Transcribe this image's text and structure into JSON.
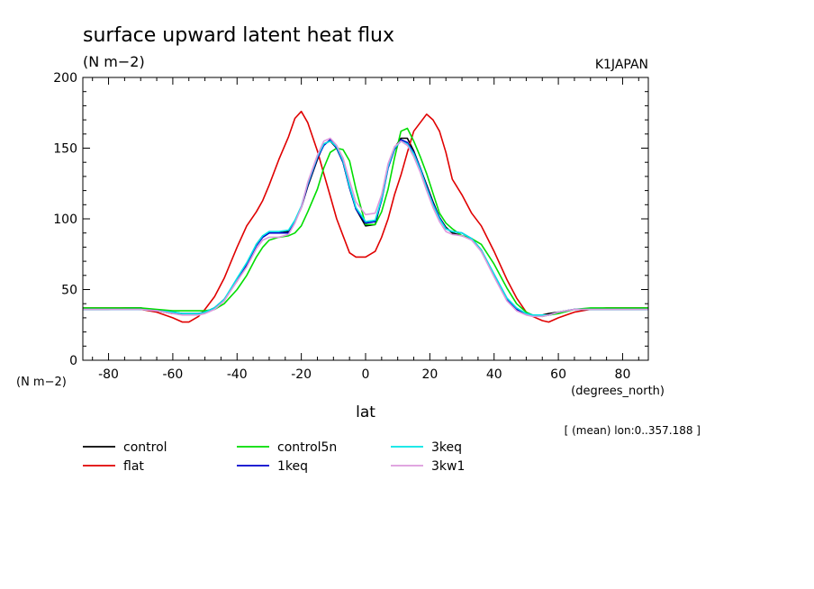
{
  "chart_data": {
    "type": "line",
    "title": "surface upward latent heat flux",
    "subtitle": "(N m−2)",
    "corner_label": "K1JAPAN",
    "ylabel": "(N m−2)",
    "xlabel": "lat",
    "xunit_label": "(degrees_north)",
    "annotation": "[ (mean) lon:0..357.188 ]",
    "xlim": [
      -88,
      88
    ],
    "ylim": [
      0,
      200
    ],
    "xticks": [
      -80,
      -60,
      -40,
      -20,
      0,
      20,
      40,
      60,
      80
    ],
    "yticks": [
      0,
      50,
      100,
      150,
      200
    ],
    "grid": false,
    "legend_position": "bottom",
    "x": [
      -88,
      -80,
      -75,
      -70,
      -65,
      -60,
      -57,
      -55,
      -52,
      -50,
      -47,
      -44,
      -40,
      -37,
      -34,
      -32,
      -30,
      -27,
      -24,
      -22,
      -20,
      -18,
      -15,
      -13,
      -11,
      -9,
      -7,
      -5,
      -3,
      0,
      3,
      5,
      7,
      9,
      11,
      13,
      15,
      17,
      19,
      21,
      23,
      25,
      27,
      30,
      33,
      36,
      40,
      44,
      47,
      50,
      52,
      55,
      57,
      60,
      65,
      70,
      75,
      80,
      88
    ],
    "series": [
      {
        "name": "control",
        "color": "#000000",
        "values": [
          36,
          36,
          37,
          37,
          35,
          33,
          33,
          33,
          33,
          34,
          37,
          43,
          56,
          67,
          82,
          88,
          90,
          90,
          91,
          98,
          108,
          123,
          142,
          153,
          155,
          150,
          140,
          122,
          107,
          95,
          96,
          114,
          137,
          150,
          157,
          157,
          148,
          136,
          124,
          112,
          101,
          94,
          90,
          88,
          86,
          78,
          60,
          43,
          36,
          33,
          32,
          32,
          33,
          34,
          36,
          36,
          36,
          36,
          36
        ]
      },
      {
        "name": "flat",
        "color": "#e00000",
        "values": [
          37,
          37,
          37,
          36,
          34,
          30,
          27,
          27,
          31,
          36,
          45,
          58,
          80,
          95,
          105,
          113,
          124,
          142,
          158,
          171,
          176,
          168,
          148,
          132,
          116,
          100,
          88,
          76,
          73,
          73,
          77,
          87,
          100,
          117,
          131,
          147,
          162,
          168,
          174,
          170,
          162,
          147,
          128,
          117,
          104,
          95,
          77,
          57,
          44,
          34,
          31,
          28,
          27,
          30,
          34,
          36,
          37,
          37,
          37
        ]
      },
      {
        "name": "control5n",
        "color": "#00dd00",
        "values": [
          37,
          37,
          37,
          37,
          36,
          35,
          35,
          35,
          35,
          35,
          36,
          40,
          50,
          60,
          73,
          80,
          85,
          87,
          88,
          90,
          95,
          105,
          121,
          136,
          147,
          150,
          149,
          141,
          121,
          96,
          96,
          105,
          121,
          143,
          162,
          164,
          155,
          144,
          132,
          118,
          104,
          97,
          93,
          88,
          86,
          82,
          68,
          51,
          40,
          34,
          32,
          31,
          32,
          33,
          36,
          37,
          37,
          37,
          37
        ]
      },
      {
        "name": "1keq",
        "color": "#0000cc",
        "values": [
          36,
          36,
          36,
          36,
          35,
          34,
          33,
          33,
          33,
          34,
          37,
          43,
          57,
          68,
          81,
          87,
          90,
          90,
          90,
          98,
          108,
          124,
          143,
          152,
          156,
          150,
          140,
          122,
          107,
          97,
          98,
          113,
          136,
          149,
          156,
          154,
          147,
          136,
          123,
          111,
          101,
          93,
          91,
          90,
          86,
          77,
          60,
          43,
          36,
          33,
          32,
          32,
          32,
          34,
          36,
          36,
          36,
          36,
          36
        ]
      },
      {
        "name": "3keq",
        "color": "#00e5e5",
        "values": [
          36,
          36,
          36,
          36,
          35,
          34,
          33,
          33,
          33,
          34,
          37,
          43,
          58,
          69,
          82,
          88,
          91,
          91,
          92,
          99,
          109,
          125,
          144,
          153,
          155,
          151,
          141,
          123,
          108,
          98,
          99,
          114,
          137,
          150,
          155,
          153,
          146,
          135,
          122,
          110,
          100,
          93,
          91,
          90,
          86,
          78,
          61,
          44,
          37,
          33,
          32,
          32,
          32,
          34,
          36,
          36,
          36,
          36,
          36
        ]
      },
      {
        "name": "3kw1",
        "color": "#dd99dd",
        "values": [
          36,
          36,
          36,
          36,
          35,
          33,
          32,
          32,
          32,
          33,
          36,
          42,
          56,
          66,
          79,
          85,
          87,
          87,
          89,
          97,
          108,
          126,
          145,
          155,
          157,
          152,
          143,
          127,
          112,
          103,
          104,
          117,
          139,
          151,
          155,
          152,
          144,
          133,
          120,
          108,
          98,
          91,
          89,
          88,
          85,
          77,
          59,
          42,
          35,
          32,
          31,
          31,
          32,
          34,
          36,
          36,
          36,
          36,
          36
        ]
      }
    ]
  }
}
